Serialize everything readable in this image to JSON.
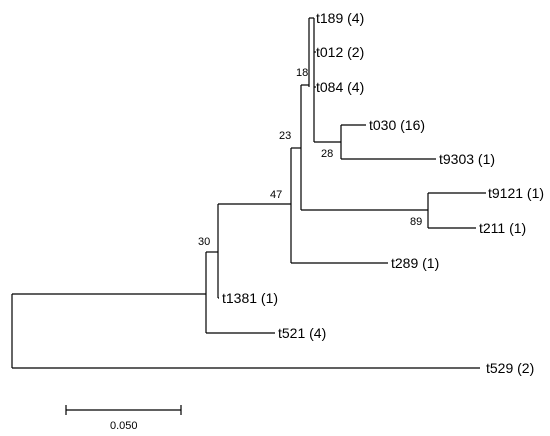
{
  "tree": {
    "leaves": [
      {
        "id": "t189",
        "label": "t189 (4)"
      },
      {
        "id": "t012",
        "label": "t012 (2)"
      },
      {
        "id": "t084",
        "label": "t084 (4)"
      },
      {
        "id": "t030",
        "label": "t030 (16)"
      },
      {
        "id": "t9303",
        "label": "t9303 (1)"
      },
      {
        "id": "t9121",
        "label": "t9121 (1)"
      },
      {
        "id": "t211",
        "label": "t211 (1)"
      },
      {
        "id": "t289",
        "label": "t289 (1)"
      },
      {
        "id": "t1381",
        "label": "t1381 (1)"
      },
      {
        "id": "t521",
        "label": "t521 (4)"
      },
      {
        "id": "t529",
        "label": "t529 (2)"
      }
    ],
    "support_values": [
      "18",
      "28",
      "23",
      "89",
      "47",
      "30"
    ],
    "scale_bar": {
      "label": "0.050",
      "length": 0.05
    },
    "line_color": "#000000"
  }
}
